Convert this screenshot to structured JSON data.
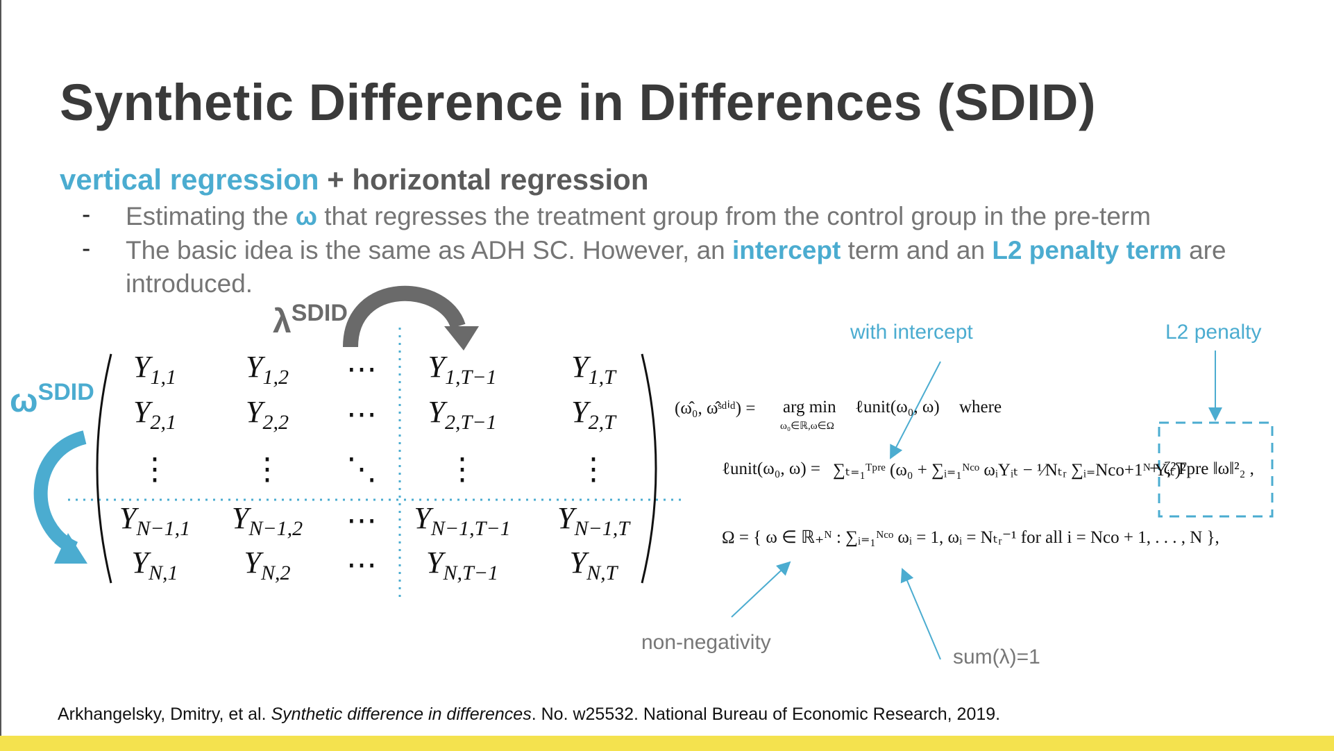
{
  "header": {
    "title": "Synthetic Difference in Differences (SDID)"
  },
  "subtitle": {
    "part1": "vertical regression",
    "part2": "+ horizontal regression"
  },
  "bullets": [
    {
      "marker": "-",
      "segments": [
        {
          "text": "Estimating the "
        },
        {
          "text": "ω",
          "emphasis": true
        },
        {
          "text": " that regresses the treatment group from the control group in the pre-term"
        }
      ]
    },
    {
      "marker": "-",
      "segments": [
        {
          "text": "The basic idea is the same as ADH SC. However, an "
        },
        {
          "text": "intercept",
          "emphasis": true
        },
        {
          "text": " term and an "
        },
        {
          "text": "L2 penalty term",
          "emphasis": true
        },
        {
          "text": " are introduced."
        }
      ]
    }
  ],
  "matrix": {
    "rows": [
      [
        {
          "base": "Y",
          "sub": "1,1"
        },
        {
          "base": "Y",
          "sub": "1,2"
        },
        "⋯",
        {
          "base": "Y",
          "sub": "1,T−1"
        },
        {
          "base": "Y",
          "sub": "1,T"
        }
      ],
      [
        {
          "base": "Y",
          "sub": "2,1"
        },
        {
          "base": "Y",
          "sub": "2,2"
        },
        "⋯",
        {
          "base": "Y",
          "sub": "2,T−1"
        },
        {
          "base": "Y",
          "sub": "2,T"
        }
      ],
      [
        "⋮",
        "⋮",
        "⋱",
        "⋮",
        "⋮"
      ],
      [
        {
          "base": "Y",
          "sub": "N−1,1"
        },
        {
          "base": "Y",
          "sub": "N−1,2"
        },
        "⋯",
        {
          "base": "Y",
          "sub": "N−1,T−1"
        },
        {
          "base": "Y",
          "sub": "N−1,T"
        }
      ],
      [
        {
          "base": "Y",
          "sub": "N,1"
        },
        {
          "base": "Y",
          "sub": "N,2"
        },
        "⋯",
        {
          "base": "Y",
          "sub": "N,T−1"
        },
        {
          "base": "Y",
          "sub": "N,T"
        }
      ]
    ],
    "lambda": {
      "base": "λ",
      "sup": "SDID"
    },
    "omega": {
      "base": "ω",
      "sup": "SDID"
    }
  },
  "formula": {
    "line1": {
      "lhs": "(ω̂₀, ω̂ˢᵈⁱᵈ) =",
      "op": "arg min",
      "op_sub": "ω₀∈ℝ,ω∈Ω",
      "rhs": "ℓunit(ω₀, ω)",
      "word": "where"
    },
    "line2": {
      "lhs": "ℓunit(ω₀, ω) =",
      "sum": "∑ₜ₌₁ᵀᵖʳᵉ (ω₀ + ∑ᵢ₌₁ᴺᶜᵒ ωᵢYᵢₜ − ¹⁄Nₜᵣ ∑ᵢ₌Nco+1ᴺ Yᵢₜ)²",
      "penalty": "+ ζ²Tpre ‖ω‖²₂ ,"
    },
    "line3": "Ω = { ω ∈ ℝ₊ᴺ : ∑ᵢ₌₁ᴺᶜᵒ ωᵢ = 1, ωᵢ = Nₜᵣ⁻¹ for all i = Nco + 1, . . . , N },"
  },
  "annotations": {
    "intercept": "with intercept",
    "penalty": "L2 penalty",
    "nonneg": "non-negativity",
    "sum": "sum(λ)=1"
  },
  "citation": [
    {
      "text": "Arkhangelsky, Dmitry, et al. "
    },
    {
      "text": "Synthetic difference in differences",
      "italic": true
    },
    {
      "text": ". No. w25532. National Bureau of Economic Research, 2019."
    }
  ]
}
